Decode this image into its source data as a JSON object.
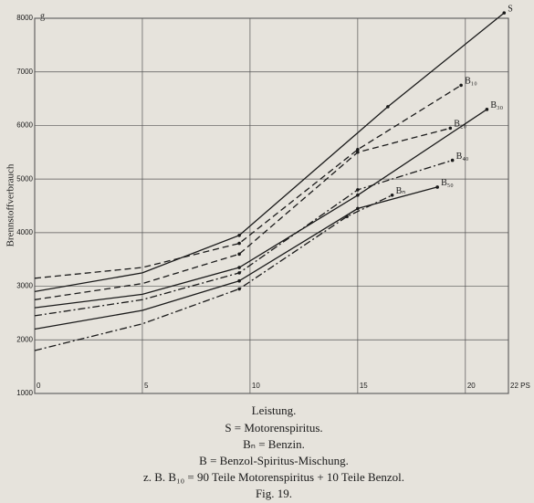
{
  "chart_data": {
    "type": "line",
    "y_label": "Brennstoffverbrauch",
    "y_unit": "g",
    "x_label": "Leistung.",
    "xlim": [
      0,
      22
    ],
    "ylim": [
      1000,
      8000
    ],
    "xticks": [
      0,
      5,
      10,
      15,
      20,
      {
        "value": 22,
        "label": "22 PS"
      }
    ],
    "yticks": [
      1000,
      2000,
      3000,
      4000,
      5000,
      6000,
      7000,
      8000
    ],
    "grid": true,
    "series": [
      {
        "name": "S",
        "color": "#1a1a1a",
        "dash": "solid",
        "x": [
          0,
          5,
          9.5,
          16.4,
          21.8
        ],
        "values": [
          2900,
          3250,
          3950,
          6350,
          8100
        ]
      },
      {
        "name": "B₁₀",
        "color": "#1a1a1a",
        "dash": "dashed",
        "x": [
          0,
          5,
          9.5,
          15,
          19.8
        ],
        "values": [
          3150,
          3350,
          3800,
          5550,
          6750
        ]
      },
      {
        "name": "B₂₀",
        "color": "#1a1a1a",
        "dash": "dashed",
        "x": [
          0,
          5,
          9.5,
          15,
          19.3
        ],
        "values": [
          2750,
          3050,
          3600,
          5500,
          5950
        ]
      },
      {
        "name": "B₃₀",
        "color": "#1a1a1a",
        "dash": "solid",
        "x": [
          0,
          5,
          9.5,
          15,
          21
        ],
        "values": [
          2600,
          2850,
          3350,
          4700,
          6300
        ]
      },
      {
        "name": "B₄₀",
        "color": "#1a1a1a",
        "dash": "dashdot",
        "x": [
          0,
          5,
          9.5,
          15,
          19.4
        ],
        "values": [
          2450,
          2750,
          3250,
          4800,
          5350
        ]
      },
      {
        "name": "B₅₀",
        "color": "#1a1a1a",
        "dash": "solid",
        "x": [
          0,
          5,
          9.5,
          15,
          18.7
        ],
        "values": [
          2200,
          2550,
          3100,
          4450,
          4850
        ]
      },
      {
        "name": "Bₙ",
        "color": "#1a1a1a",
        "dash": "dashdot",
        "x": [
          0,
          5,
          9.5,
          14.5,
          16.6
        ],
        "values": [
          1800,
          2300,
          2950,
          4300,
          4700
        ]
      }
    ],
    "caption": [
      "S = Motorenspiritus.",
      "Bₙ = Benzin.",
      "B = Benzol-Spiritus-Mischung.",
      "z. B. B₁₀ = 90 Teile Motorenspiritus + 10 Teile Benzol.",
      "Fig. 19."
    ]
  }
}
